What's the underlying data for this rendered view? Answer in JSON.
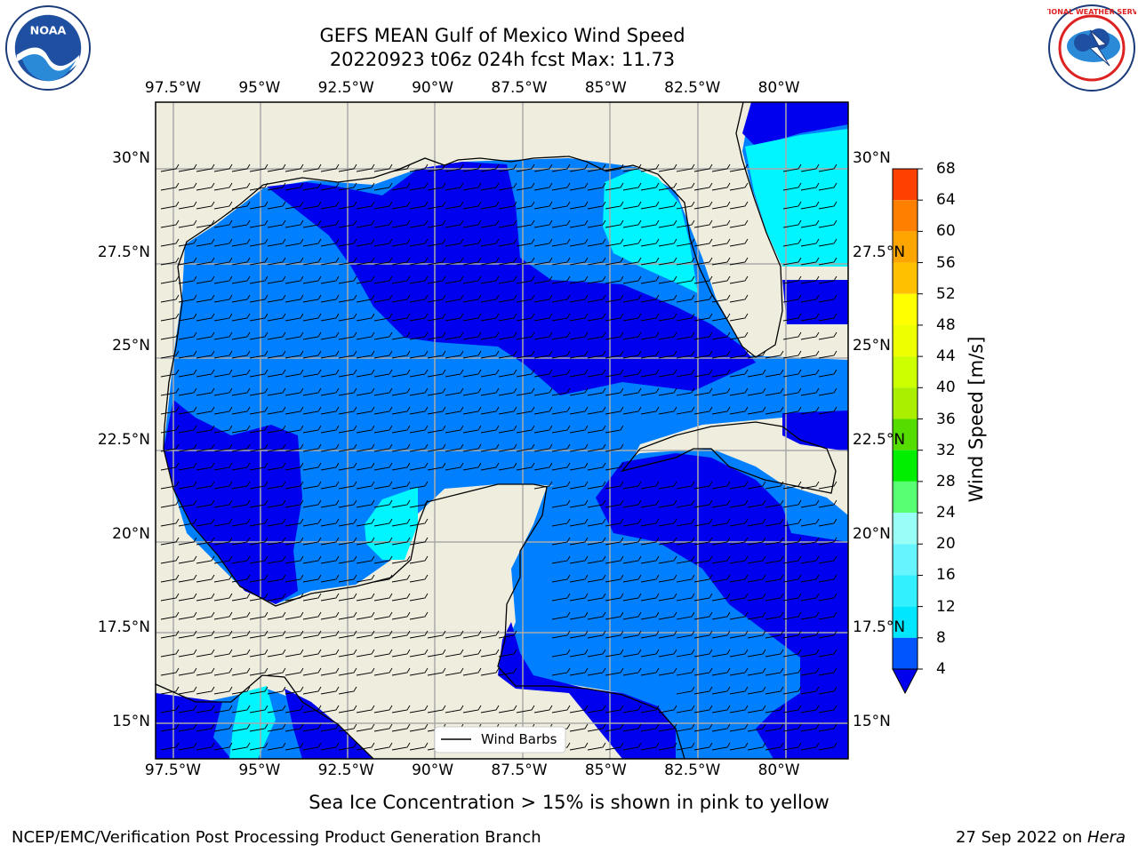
{
  "title": {
    "line1": "GEFS MEAN Gulf of Mexico Wind Speed",
    "line2": "20220923 t06z 024h fcst   Max: 11.73"
  },
  "axes": {
    "lon_labels": [
      "97.5°W",
      "95°W",
      "92.5°W",
      "90°W",
      "87.5°W",
      "85°W",
      "82.5°W",
      "80°W"
    ],
    "lat_labels": [
      "30°N",
      "27.5°N",
      "25°N",
      "22.5°N",
      "20°N",
      "17.5°N",
      "15°N"
    ],
    "lon_values": [
      -97.5,
      -95,
      -92.5,
      -90,
      -87.5,
      -85,
      -82.5,
      -80
    ],
    "lat_values": [
      30,
      27.5,
      25,
      22.5,
      20,
      17.5,
      15
    ],
    "lon_range": [
      -98,
      -78
    ],
    "lat_range": [
      14,
      31.5
    ]
  },
  "legend": {
    "label": "Wind Barbs"
  },
  "colorbar": {
    "label": "Wind Speed [m/s]",
    "ticks": [
      "68",
      "64",
      "60",
      "56",
      "52",
      "48",
      "44",
      "40",
      "36",
      "32",
      "28",
      "24",
      "20",
      "16",
      "12",
      "8",
      "4"
    ],
    "levels": [
      4,
      8,
      12,
      16,
      20,
      24,
      28,
      32,
      36,
      40,
      44,
      48,
      52,
      56,
      60,
      64,
      68
    ],
    "colors": [
      "#0055ff",
      "#00e6ff",
      "#33f0ff",
      "#66f5ff",
      "#99fff6",
      "#59ff73",
      "#00ee00",
      "#55dd00",
      "#aaee00",
      "#ccff00",
      "#eeff00",
      "#ffff00",
      "#ffc000",
      "#ffa500",
      "#ff8000",
      "#ff4000",
      "#ff0000"
    ],
    "under_color": "#0000ee"
  },
  "colors": {
    "land": "#efedde",
    "speed_0_4": "#0000ee",
    "speed_4_8": "#0080ff",
    "speed_8_12": "#00f5ff",
    "grid": "#aaaaaa"
  },
  "logos": {
    "left": "NOAA",
    "right": "NATIONAL WEATHER SERVICE"
  },
  "footer": {
    "ice_note": "Sea Ice Concentration > 15% is shown in pink to yellow",
    "branch": "NCEP/EMC/Verification Post Processing Product Generation Branch",
    "date": "27 Sep 2022 on ",
    "host": "Hera"
  }
}
